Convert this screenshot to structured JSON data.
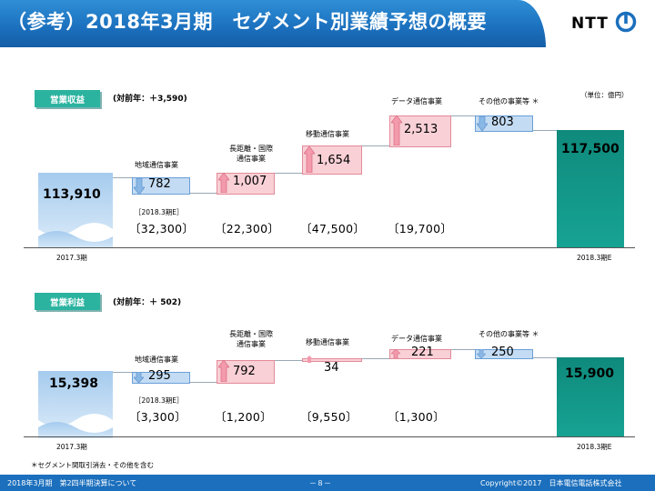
{
  "header": {
    "title": "（参考）2018年3月期　セグメント別業績予想の概要",
    "logo_text": "NTT"
  },
  "unit": "（単位：億円）",
  "revenue": {
    "tag": "営業収益",
    "yoy": "(対前年：＋3,590)",
    "start_value": "113,910",
    "start_label": "2017.3期",
    "end_value": "117,500",
    "end_label": "2018.3期E",
    "forecast_note": "［2018.3期E］",
    "segments": [
      {
        "name": "地域通信事業",
        "change": "782",
        "direction": "down",
        "forecast": "〔32,300〕"
      },
      {
        "name1": "長距離・国際",
        "name2": "通信事業",
        "change": "1,007",
        "direction": "up",
        "forecast": "〔22,300〕"
      },
      {
        "name": "移動通信事業",
        "change": "1,654",
        "direction": "up",
        "forecast": "〔47,500〕"
      },
      {
        "name": "データ通信事業",
        "change": "2,513",
        "direction": "up",
        "forecast": "〔19,700〕"
      },
      {
        "name": "その他の事業等 ＊",
        "change": "803",
        "direction": "down",
        "forecast": ""
      }
    ]
  },
  "profit": {
    "tag": "営業利益",
    "yoy": "(対前年：＋ 502)",
    "start_value": "15,398",
    "start_label": "2017.3期",
    "end_value": "15,900",
    "end_label": "2018.3期E",
    "forecast_note": "［2018.3期E］",
    "segments": [
      {
        "name": "地域通信事業",
        "change": "295",
        "direction": "down",
        "forecast": "〔3,300〕"
      },
      {
        "name1": "長距離・国際",
        "name2": "通信事業",
        "change": "792",
        "direction": "up",
        "forecast": "〔1,200〕"
      },
      {
        "name": "移動通信事業",
        "change": "34",
        "direction": "up",
        "forecast": "〔9,550〕"
      },
      {
        "name": "データ通信事業",
        "change": "221",
        "direction": "up",
        "forecast": "〔1,300〕"
      },
      {
        "name": "その他の事業等 ＊",
        "change": "250",
        "direction": "down",
        "forecast": ""
      }
    ],
    "footnote": "＊セグメント間取引消去・その他を含む"
  },
  "footer": {
    "left": "2018年3月期　第2四半期決算について",
    "page": "－８－",
    "right": "Copyright©2017　日本電信電話株式会社"
  },
  "colors": {
    "increase": "#f8d0d6",
    "decrease": "#c4dcf3",
    "total_end": "#13998a",
    "header": "#1b6fbd"
  }
}
